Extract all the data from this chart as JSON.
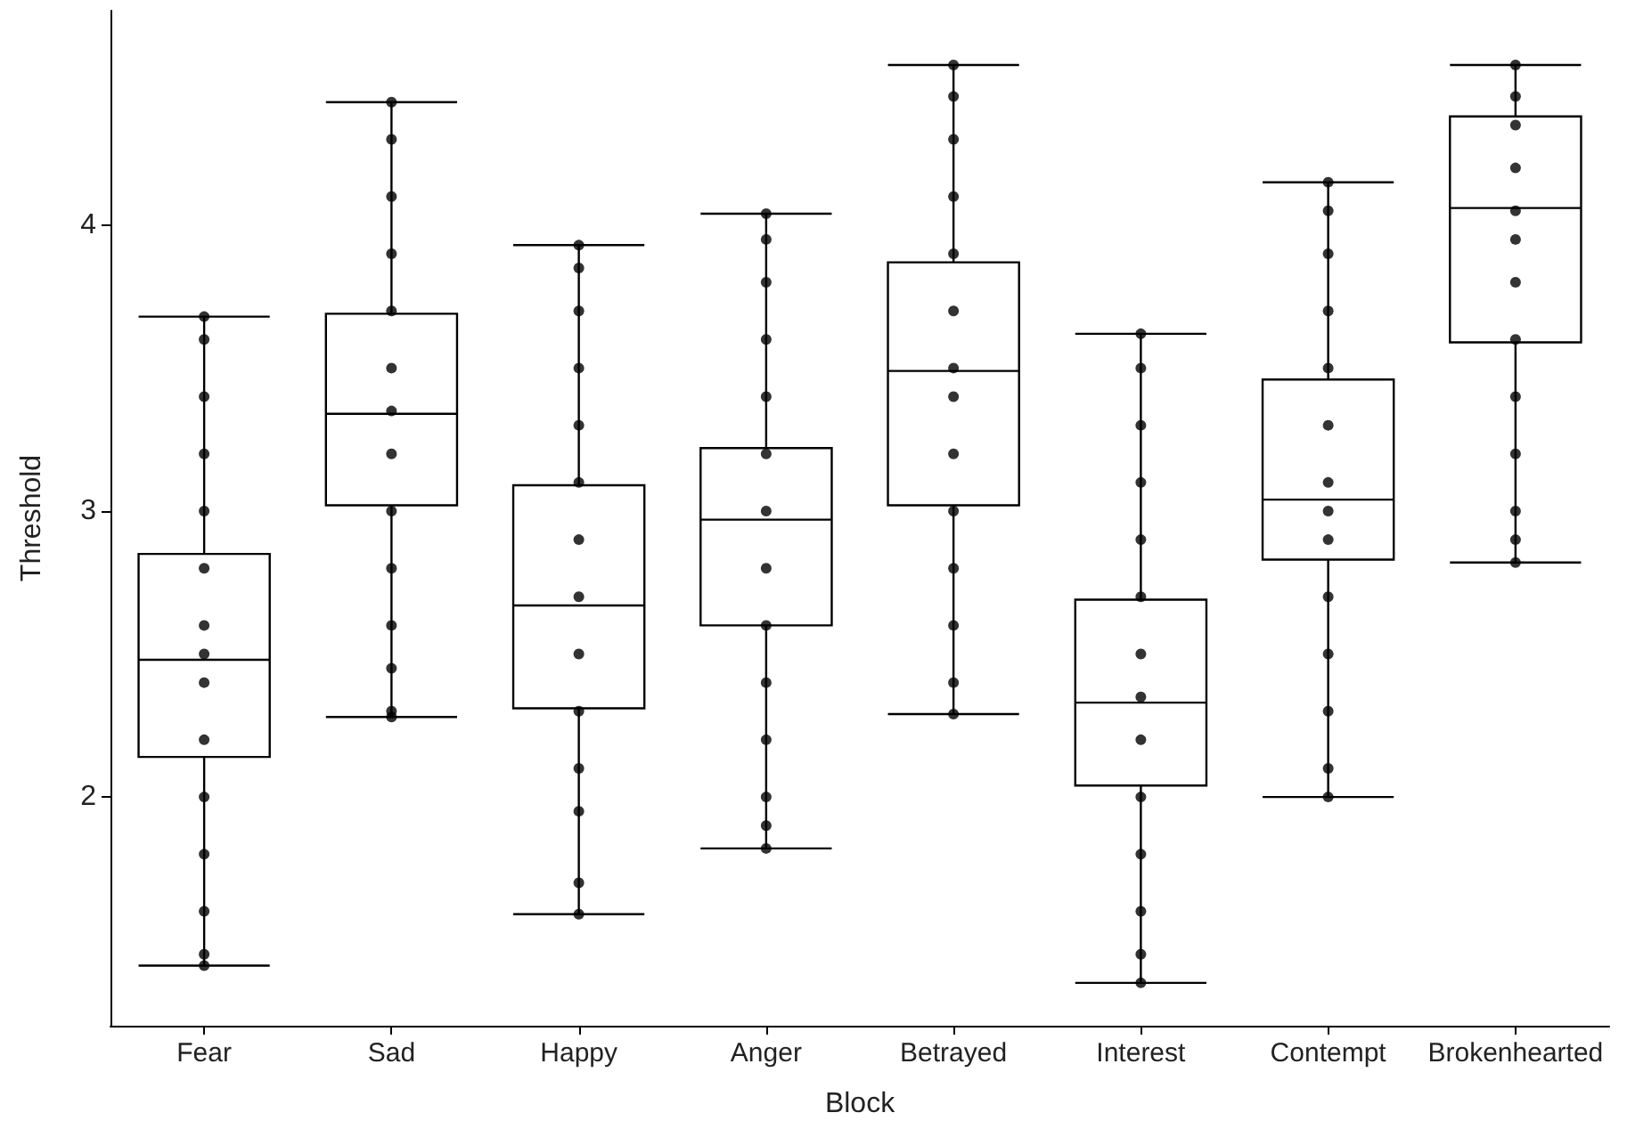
{
  "chart_data": {
    "type": "box",
    "xlabel": "Block",
    "ylabel": "Threshold",
    "categories": [
      "Fear",
      "Sad",
      "Happy",
      "Anger",
      "Betrayed",
      "Interest",
      "Contempt",
      "Brokenhearted"
    ],
    "boxes": [
      {
        "low": 1.41,
        "q1": 2.14,
        "median": 2.48,
        "q3": 2.85,
        "high": 3.68
      },
      {
        "low": 2.28,
        "q1": 3.02,
        "median": 3.34,
        "q3": 3.69,
        "high": 4.43
      },
      {
        "low": 1.59,
        "q1": 2.31,
        "median": 2.67,
        "q3": 3.09,
        "high": 3.93
      },
      {
        "low": 1.82,
        "q1": 2.6,
        "median": 2.97,
        "q3": 3.22,
        "high": 4.04
      },
      {
        "low": 2.29,
        "q1": 3.02,
        "median": 3.49,
        "q3": 3.87,
        "high": 4.56
      },
      {
        "low": 1.35,
        "q1": 2.04,
        "median": 2.33,
        "q3": 2.69,
        "high": 3.62
      },
      {
        "low": 2.0,
        "q1": 2.83,
        "median": 3.04,
        "q3": 3.46,
        "high": 4.15
      },
      {
        "low": 2.82,
        "q1": 3.59,
        "median": 4.06,
        "q3": 4.38,
        "high": 4.56
      }
    ],
    "series": [
      {
        "type": "scatter",
        "color": "#000000",
        "x": [
          "Fear",
          "Fear",
          "Fear",
          "Fear",
          "Fear",
          "Fear",
          "Fear",
          "Fear",
          "Fear",
          "Fear",
          "Fear",
          "Fear",
          "Fear",
          "Fear",
          "Fear",
          "Sad",
          "Sad",
          "Sad",
          "Sad",
          "Sad",
          "Sad",
          "Sad",
          "Sad",
          "Sad",
          "Sad",
          "Sad",
          "Sad",
          "Sad",
          "Sad",
          "Happy",
          "Happy",
          "Happy",
          "Happy",
          "Happy",
          "Happy",
          "Happy",
          "Happy",
          "Happy",
          "Happy",
          "Happy",
          "Happy",
          "Happy",
          "Happy",
          "Anger",
          "Anger",
          "Anger",
          "Anger",
          "Anger",
          "Anger",
          "Anger",
          "Anger",
          "Anger",
          "Anger",
          "Anger",
          "Anger",
          "Anger",
          "Anger",
          "Betrayed",
          "Betrayed",
          "Betrayed",
          "Betrayed",
          "Betrayed",
          "Betrayed",
          "Betrayed",
          "Betrayed",
          "Betrayed",
          "Betrayed",
          "Betrayed",
          "Betrayed",
          "Betrayed",
          "Betrayed",
          "Interest",
          "Interest",
          "Interest",
          "Interest",
          "Interest",
          "Interest",
          "Interest",
          "Interest",
          "Interest",
          "Interest",
          "Interest",
          "Interest",
          "Interest",
          "Interest",
          "Contempt",
          "Contempt",
          "Contempt",
          "Contempt",
          "Contempt",
          "Contempt",
          "Contempt",
          "Contempt",
          "Contempt",
          "Contempt",
          "Contempt",
          "Contempt",
          "Contempt",
          "Contempt",
          "Brokenhearted",
          "Brokenhearted",
          "Brokenhearted",
          "Brokenhearted",
          "Brokenhearted",
          "Brokenhearted",
          "Brokenhearted",
          "Brokenhearted",
          "Brokenhearted",
          "Brokenhearted",
          "Brokenhearted",
          "Brokenhearted",
          "Brokenhearted"
        ],
        "values": [
          1.41,
          1.45,
          1.6,
          1.8,
          2.0,
          2.2,
          2.4,
          2.5,
          2.6,
          2.8,
          3.0,
          3.2,
          3.4,
          3.6,
          3.68,
          2.28,
          2.3,
          2.45,
          2.6,
          2.8,
          3.0,
          3.2,
          3.35,
          3.5,
          3.7,
          3.9,
          4.1,
          4.3,
          4.43,
          1.59,
          1.7,
          1.95,
          2.1,
          2.3,
          2.5,
          2.7,
          2.9,
          3.1,
          3.3,
          3.5,
          3.7,
          3.85,
          3.93,
          1.82,
          1.9,
          2.0,
          2.2,
          2.4,
          2.6,
          2.8,
          3.0,
          3.2,
          3.4,
          3.6,
          3.8,
          3.95,
          4.04,
          2.29,
          2.4,
          2.6,
          2.8,
          3.0,
          3.2,
          3.4,
          3.5,
          3.7,
          3.9,
          4.1,
          4.3,
          4.45,
          4.56,
          1.35,
          1.45,
          1.6,
          1.8,
          2.0,
          2.2,
          2.35,
          2.5,
          2.7,
          2.9,
          3.1,
          3.3,
          3.5,
          3.62,
          2.0,
          2.1,
          2.3,
          2.5,
          2.7,
          2.9,
          3.0,
          3.1,
          3.3,
          3.5,
          3.7,
          3.9,
          4.05,
          4.15,
          2.82,
          2.9,
          3.0,
          3.2,
          3.4,
          3.6,
          3.8,
          3.95,
          4.05,
          4.2,
          4.35,
          4.45,
          4.56
        ]
      }
    ],
    "ylim": [
      1.2,
      4.75
    ],
    "yticks": [
      2,
      3,
      4
    ],
    "grid": false,
    "marker": "circle"
  }
}
